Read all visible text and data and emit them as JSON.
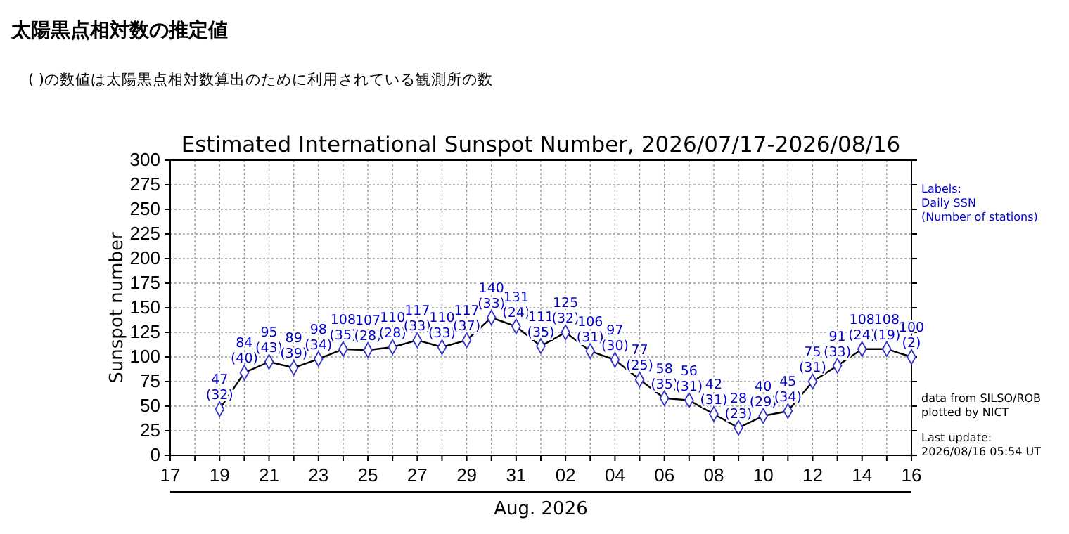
{
  "chart_data": {
    "type": "line",
    "title": "Estimated International Sunspot Number, 2026/07/17-2026/08/16",
    "xlabel": "Aug. 2026",
    "ylabel": "Sunspot number",
    "annotations": [
      "太陽黒点相対数の推定値",
      "( )の数値は太陽黒点相対数算出のために利用されている観測所の数",
      "Labels:\nDaily SSN\n(Number of stations)",
      "data from SILSO/ROB\nplotted by NICT",
      "Last update:\n2026/08/16 05:54 UT"
    ],
    "x": [
      "2026-07-19",
      "2026-07-20",
      "2026-07-21",
      "2026-07-22",
      "2026-07-23",
      "2026-07-24",
      "2026-07-25",
      "2026-07-26",
      "2026-07-27",
      "2026-07-28",
      "2026-07-29",
      "2026-07-30",
      "2026-07-31",
      "2026-08-01",
      "2026-08-02",
      "2026-08-03",
      "2026-08-04",
      "2026-08-05",
      "2026-08-06",
      "2026-08-07",
      "2026-08-08",
      "2026-08-09",
      "2026-08-10",
      "2026-08-11",
      "2026-08-12",
      "2026-08-13",
      "2026-08-14",
      "2026-08-15",
      "2026-08-16"
    ],
    "series": [
      {
        "color": "#000000",
        "values": [
          47,
          84,
          95,
          89,
          98,
          108,
          107,
          110,
          117,
          110,
          117,
          140,
          131,
          111,
          125,
          106,
          97,
          77,
          58,
          56,
          42,
          28,
          40,
          45,
          75,
          91,
          108,
          108,
          100
        ],
        "value_labels": [
          "47\n(32)",
          "84\n(40)",
          "95\n(43)",
          "89\n(39)",
          "98\n(34)",
          "108\n(35)",
          "107\n(28)",
          "110\n(28)",
          "117\n(33)",
          "110\n(33)",
          "117\n(37)",
          "140\n(33)",
          "131\n(24)",
          "111\n(35)",
          "125\n(32)",
          "106\n(31)",
          "97\n(30)",
          "77\n(25)",
          "58\n(35)",
          "56\n(31)",
          "42\n(31)",
          "28\n(23)",
          "40\n(29)",
          "45\n(34)",
          "75\n(31)",
          "91\n(33)",
          "108\n(24)",
          "108\n(19)",
          "100\n(2)"
        ]
      }
    ],
    "xlim": [
      "2026-07-17",
      "2026-08-16"
    ],
    "xticks": [
      {
        "value": "2026-07-17",
        "label": "17"
      },
      {
        "value": "2026-07-18",
        "label": null
      },
      {
        "value": "2026-07-19",
        "label": "19"
      },
      {
        "value": "2026-07-20",
        "label": null
      },
      {
        "value": "2026-07-21",
        "label": "21"
      },
      {
        "value": "2026-07-22",
        "label": null
      },
      {
        "value": "2026-07-23",
        "label": "23"
      },
      {
        "value": "2026-07-24",
        "label": null
      },
      {
        "value": "2026-07-25",
        "label": "25"
      },
      {
        "value": "2026-07-26",
        "label": null
      },
      {
        "value": "2026-07-27",
        "label": "27"
      },
      {
        "value": "2026-07-28",
        "label": null
      },
      {
        "value": "2026-07-29",
        "label": "29"
      },
      {
        "value": "2026-07-30",
        "label": null
      },
      {
        "value": "2026-07-31",
        "label": "31"
      },
      {
        "value": "2026-08-01",
        "label": null
      },
      {
        "value": "2026-08-02",
        "label": "02"
      },
      {
        "value": "2026-08-03",
        "label": null
      },
      {
        "value": "2026-08-04",
        "label": "04"
      },
      {
        "value": "2026-08-05",
        "label": null
      },
      {
        "value": "2026-08-06",
        "label": "06"
      },
      {
        "value": "2026-08-07",
        "label": null
      },
      {
        "value": "2026-08-08",
        "label": "08"
      },
      {
        "value": "2026-08-09",
        "label": null
      },
      {
        "value": "2026-08-10",
        "label": "10"
      },
      {
        "value": "2026-08-11",
        "label": null
      },
      {
        "value": "2026-08-12",
        "label": "12"
      },
      {
        "value": "2026-08-13",
        "label": null
      },
      {
        "value": "2026-08-14",
        "label": "14"
      },
      {
        "value": "2026-08-15",
        "label": null
      },
      {
        "value": "2026-08-16",
        "label": "16"
      }
    ],
    "ylim": [
      0,
      300
    ],
    "yticks": [
      0,
      25,
      50,
      75,
      100,
      125,
      150,
      175,
      200,
      225,
      250,
      275,
      300
    ],
    "grid": true,
    "marker": "diamond",
    "line_style": "solid"
  }
}
